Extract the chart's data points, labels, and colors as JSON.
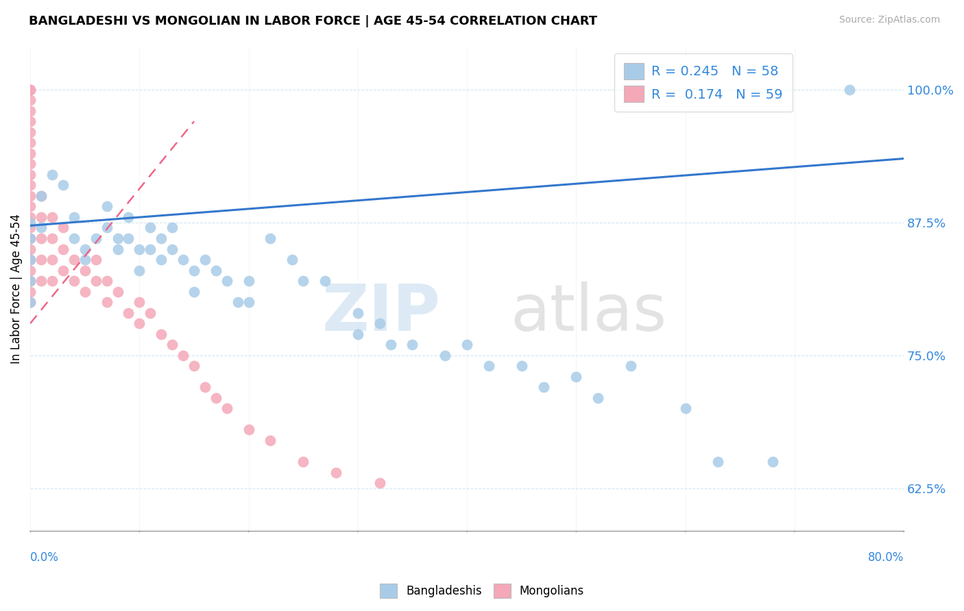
{
  "title": "BANGLADESHI VS MONGOLIAN IN LABOR FORCE | AGE 45-54 CORRELATION CHART",
  "source": "Source: ZipAtlas.com",
  "ylabel": "In Labor Force | Age 45-54",
  "ytick_labels": [
    "62.5%",
    "75.0%",
    "87.5%",
    "100.0%"
  ],
  "ytick_values": [
    0.625,
    0.75,
    0.875,
    1.0
  ],
  "xlim": [
    0.0,
    0.8
  ],
  "ylim": [
    0.585,
    1.04
  ],
  "legend_r_blue": "0.245",
  "legend_n_blue": "58",
  "legend_r_pink": "0.174",
  "legend_n_pink": "59",
  "blue_color": "#a8cce8",
  "pink_color": "#f4a8b8",
  "trend_blue_color": "#3377cc",
  "trend_pink_color": "#ee6688",
  "blue_scatter_x": [
    0.0,
    0.0,
    0.0,
    0.0,
    0.0,
    0.01,
    0.01,
    0.02,
    0.03,
    0.04,
    0.04,
    0.05,
    0.05,
    0.06,
    0.07,
    0.07,
    0.08,
    0.08,
    0.09,
    0.09,
    0.1,
    0.1,
    0.11,
    0.11,
    0.12,
    0.12,
    0.13,
    0.13,
    0.14,
    0.15,
    0.15,
    0.16,
    0.17,
    0.18,
    0.19,
    0.2,
    0.2,
    0.22,
    0.24,
    0.25,
    0.27,
    0.3,
    0.3,
    0.32,
    0.33,
    0.35,
    0.38,
    0.4,
    0.42,
    0.45,
    0.47,
    0.5,
    0.52,
    0.55,
    0.6,
    0.63,
    0.68,
    0.75
  ],
  "blue_scatter_y": [
    0.875,
    0.86,
    0.84,
    0.82,
    0.8,
    0.9,
    0.87,
    0.92,
    0.91,
    0.88,
    0.86,
    0.85,
    0.84,
    0.86,
    0.89,
    0.87,
    0.86,
    0.85,
    0.88,
    0.86,
    0.85,
    0.83,
    0.87,
    0.85,
    0.86,
    0.84,
    0.87,
    0.85,
    0.84,
    0.83,
    0.81,
    0.84,
    0.83,
    0.82,
    0.8,
    0.82,
    0.8,
    0.86,
    0.84,
    0.82,
    0.82,
    0.79,
    0.77,
    0.78,
    0.76,
    0.76,
    0.75,
    0.76,
    0.74,
    0.74,
    0.72,
    0.73,
    0.71,
    0.74,
    0.7,
    0.65,
    0.65,
    1.0
  ],
  "pink_scatter_x": [
    0.0,
    0.0,
    0.0,
    0.0,
    0.0,
    0.0,
    0.0,
    0.0,
    0.0,
    0.0,
    0.0,
    0.0,
    0.0,
    0.0,
    0.0,
    0.0,
    0.0,
    0.0,
    0.0,
    0.0,
    0.0,
    0.0,
    0.01,
    0.01,
    0.01,
    0.01,
    0.01,
    0.02,
    0.02,
    0.02,
    0.02,
    0.03,
    0.03,
    0.03,
    0.04,
    0.04,
    0.05,
    0.05,
    0.06,
    0.06,
    0.07,
    0.07,
    0.08,
    0.09,
    0.1,
    0.1,
    0.11,
    0.12,
    0.13,
    0.14,
    0.15,
    0.16,
    0.17,
    0.18,
    0.2,
    0.22,
    0.25,
    0.28,
    0.32
  ],
  "pink_scatter_y": [
    1.0,
    1.0,
    0.99,
    0.98,
    0.97,
    0.96,
    0.95,
    0.94,
    0.93,
    0.92,
    0.91,
    0.9,
    0.89,
    0.88,
    0.87,
    0.86,
    0.85,
    0.84,
    0.83,
    0.82,
    0.81,
    0.8,
    0.9,
    0.88,
    0.86,
    0.84,
    0.82,
    0.88,
    0.86,
    0.84,
    0.82,
    0.87,
    0.85,
    0.83,
    0.84,
    0.82,
    0.83,
    0.81,
    0.84,
    0.82,
    0.82,
    0.8,
    0.81,
    0.79,
    0.8,
    0.78,
    0.79,
    0.77,
    0.76,
    0.75,
    0.74,
    0.72,
    0.71,
    0.7,
    0.68,
    0.67,
    0.65,
    0.64,
    0.63
  ],
  "trend_blue_x0": 0.0,
  "trend_blue_y0": 0.872,
  "trend_blue_x1": 0.8,
  "trend_blue_y1": 0.935,
  "trend_pink_x0": 0.0,
  "trend_pink_y0": 0.78,
  "trend_pink_x1": 0.15,
  "trend_pink_y1": 0.97
}
